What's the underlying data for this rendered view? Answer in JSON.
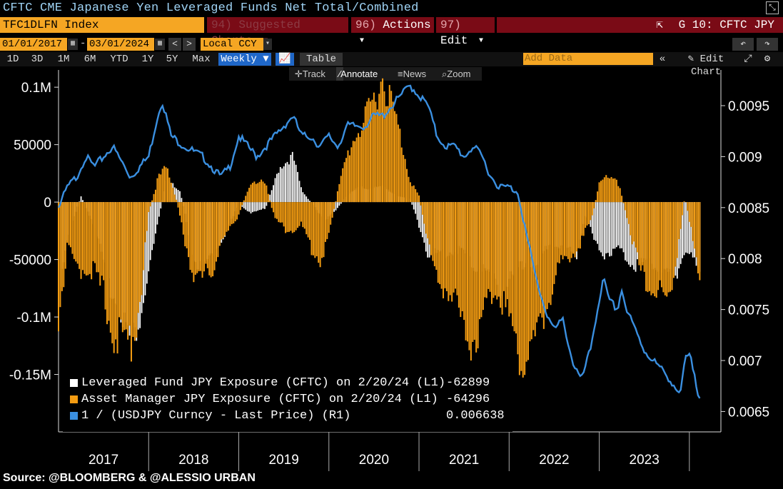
{
  "window": {
    "title": "CFTC CME Japanese Yen Leveraged Funds Net Total/Combined"
  },
  "toolbar_row": {
    "ticker": "TFC1DLFN Index",
    "suggested": {
      "num": "94)",
      "label": "Suggested Charts"
    },
    "actions": {
      "num": "96)",
      "label": "Actions"
    },
    "edit": {
      "num": "97)",
      "label": "Edit"
    },
    "launch": "G 10: CFTC JPY"
  },
  "range_row": {
    "start_date": "01/01/2017",
    "dash": "-",
    "end_date": "03/01/2024",
    "currency": "Local CCY",
    "prev": "<",
    "next": ">"
  },
  "period_row": {
    "periods": [
      "1D",
      "3D",
      "1M",
      "6M",
      "YTD",
      "1Y",
      "5Y",
      "Max"
    ],
    "frequency": "Weekly",
    "table_label": "Table",
    "add_data_placeholder": "Add Data",
    "edit_chart": "Edit Chart"
  },
  "chart_tools": {
    "track": "Track",
    "annotate": "Annotate",
    "news": "News",
    "zoom": "Zoom"
  },
  "chart_data": {
    "type": "bar+line",
    "title": "CFTC CME Japanese Yen Leveraged Funds Net Total/Combined",
    "x_years": [
      "2017",
      "2018",
      "2019",
      "2020",
      "2021",
      "2022",
      "2023"
    ],
    "left_axis": {
      "ticks": [
        "0.1M",
        "50000",
        "0",
        "-50000",
        "-0.1M",
        "-0.15M"
      ],
      "tick_values": [
        100000,
        50000,
        0,
        -50000,
        -100000,
        -150000
      ],
      "range": [
        -200000,
        115000
      ]
    },
    "right_axis": {
      "ticks": [
        "0.0095",
        "0.009",
        "0.0085",
        "0.008",
        "0.0075",
        "0.007",
        "0.0065"
      ],
      "tick_values": [
        0.0095,
        0.009,
        0.0085,
        0.008,
        0.0075,
        0.007,
        0.0065
      ],
      "range": [
        0.0063,
        0.00985
      ]
    },
    "series": [
      {
        "name": "Leveraged Fund JPY Exposure (CFTC) on 2/20/24 (L1)",
        "last": "-62899",
        "color": "#ffffff",
        "anchors": [
          [
            2017.0,
            -75000
          ],
          [
            2017.1,
            -30000
          ],
          [
            2017.25,
            5000
          ],
          [
            2017.4,
            -20000
          ],
          [
            2017.55,
            -70000
          ],
          [
            2017.7,
            -95000
          ],
          [
            2017.8,
            -120000
          ],
          [
            2017.9,
            -105000
          ],
          [
            2018.05,
            -40000
          ],
          [
            2018.2,
            20000
          ],
          [
            2018.35,
            10000
          ],
          [
            2018.5,
            -50000
          ],
          [
            2018.6,
            -60000
          ],
          [
            2018.75,
            -40000
          ],
          [
            2018.9,
            -20000
          ],
          [
            2019.0,
            -2000
          ],
          [
            2019.15,
            -10000
          ],
          [
            2019.3,
            -5000
          ],
          [
            2019.45,
            30000
          ],
          [
            2019.6,
            40000
          ],
          [
            2019.7,
            10000
          ],
          [
            2019.85,
            -5000
          ],
          [
            2019.95,
            -15000
          ],
          [
            2020.05,
            -10000
          ],
          [
            2020.2,
            5000
          ],
          [
            2020.35,
            15000
          ],
          [
            2020.45,
            10000
          ],
          [
            2020.6,
            15000
          ],
          [
            2020.75,
            5000
          ],
          [
            2020.9,
            3000
          ],
          [
            2021.0,
            -20000
          ],
          [
            2021.1,
            -45000
          ],
          [
            2021.3,
            -45000
          ],
          [
            2021.45,
            -40000
          ],
          [
            2021.6,
            -55000
          ],
          [
            2021.75,
            -60000
          ],
          [
            2021.9,
            -75000
          ],
          [
            2022.0,
            -70000
          ],
          [
            2022.1,
            -60000
          ],
          [
            2022.2,
            -50000
          ],
          [
            2022.3,
            -60000
          ],
          [
            2022.45,
            -35000
          ],
          [
            2022.6,
            -40000
          ],
          [
            2022.75,
            -45000
          ],
          [
            2022.85,
            -10000
          ],
          [
            2022.95,
            -35000
          ],
          [
            2023.05,
            -45000
          ],
          [
            2023.2,
            -40000
          ],
          [
            2023.4,
            -55000
          ],
          [
            2023.55,
            -50000
          ],
          [
            2023.7,
            -60000
          ],
          [
            2023.85,
            -65000
          ],
          [
            2023.95,
            -40000
          ],
          [
            2024.13,
            -62899
          ]
        ]
      },
      {
        "name": "Asset Manager JPY Exposure (CFTC) on 2/20/24 (L1)",
        "last": "-64296",
        "color": "#f39c12",
        "anchors": [
          [
            2017.0,
            -100000
          ],
          [
            2017.1,
            -40000
          ],
          [
            2017.2,
            -60000
          ],
          [
            2017.35,
            -55000
          ],
          [
            2017.5,
            -80000
          ],
          [
            2017.6,
            -110000
          ],
          [
            2017.7,
            -125000
          ],
          [
            2017.8,
            -120000
          ],
          [
            2017.9,
            -90000
          ],
          [
            2018.0,
            -10000
          ],
          [
            2018.1,
            20000
          ],
          [
            2018.2,
            30000
          ],
          [
            2018.3,
            5000
          ],
          [
            2018.45,
            -50000
          ],
          [
            2018.55,
            -70000
          ],
          [
            2018.7,
            -60000
          ],
          [
            2018.8,
            -35000
          ],
          [
            2018.9,
            -25000
          ],
          [
            2019.0,
            -10000
          ],
          [
            2019.15,
            20000
          ],
          [
            2019.3,
            15000
          ],
          [
            2019.4,
            -15000
          ],
          [
            2019.55,
            -25000
          ],
          [
            2019.7,
            -20000
          ],
          [
            2019.8,
            -40000
          ],
          [
            2019.9,
            -50000
          ],
          [
            2020.0,
            -30000
          ],
          [
            2020.1,
            10000
          ],
          [
            2020.2,
            40000
          ],
          [
            2020.3,
            60000
          ],
          [
            2020.4,
            70000
          ],
          [
            2020.5,
            90000
          ],
          [
            2020.6,
            110000
          ],
          [
            2020.7,
            85000
          ],
          [
            2020.8,
            55000
          ],
          [
            2020.9,
            20000
          ],
          [
            2021.0,
            5000
          ],
          [
            2021.1,
            -35000
          ],
          [
            2021.2,
            -70000
          ],
          [
            2021.35,
            -75000
          ],
          [
            2021.5,
            -110000
          ],
          [
            2021.6,
            -120000
          ],
          [
            2021.75,
            -90000
          ],
          [
            2021.85,
            -70000
          ],
          [
            2022.0,
            -100000
          ],
          [
            2022.15,
            -140000
          ],
          [
            2022.3,
            -120000
          ],
          [
            2022.45,
            -80000
          ],
          [
            2022.6,
            -50000
          ],
          [
            2022.75,
            -40000
          ],
          [
            2022.9,
            -20000
          ],
          [
            2023.0,
            15000
          ],
          [
            2023.1,
            25000
          ],
          [
            2023.2,
            20000
          ],
          [
            2023.3,
            -10000
          ],
          [
            2023.45,
            -60000
          ],
          [
            2023.6,
            -75000
          ],
          [
            2023.7,
            -85000
          ],
          [
            2023.8,
            -80000
          ],
          [
            2023.95,
            5000
          ],
          [
            2024.05,
            -40000
          ],
          [
            2024.13,
            -64296
          ]
        ]
      },
      {
        "name": "1 / (USDJPY Curncy - Last Price) (R1)",
        "last": "0.006638",
        "color": "#3a8fe0",
        "anchors": [
          [
            2017.0,
            0.0085
          ],
          [
            2017.1,
            0.0087
          ],
          [
            2017.2,
            0.0088
          ],
          [
            2017.3,
            0.009
          ],
          [
            2017.4,
            0.0089
          ],
          [
            2017.5,
            0.009
          ],
          [
            2017.6,
            0.0091
          ],
          [
            2017.7,
            0.00895
          ],
          [
            2017.8,
            0.0088
          ],
          [
            2017.9,
            0.0089
          ],
          [
            2018.0,
            0.009
          ],
          [
            2018.1,
            0.0094
          ],
          [
            2018.15,
            0.00955
          ],
          [
            2018.25,
            0.0092
          ],
          [
            2018.4,
            0.0091
          ],
          [
            2018.5,
            0.00905
          ],
          [
            2018.6,
            0.009
          ],
          [
            2018.7,
            0.0089
          ],
          [
            2018.8,
            0.0088
          ],
          [
            2018.9,
            0.0089
          ],
          [
            2019.0,
            0.0092
          ],
          [
            2019.1,
            0.0091
          ],
          [
            2019.2,
            0.009
          ],
          [
            2019.3,
            0.0091
          ],
          [
            2019.4,
            0.0092
          ],
          [
            2019.5,
            0.0093
          ],
          [
            2019.6,
            0.0094
          ],
          [
            2019.7,
            0.0092
          ],
          [
            2019.8,
            0.0092
          ],
          [
            2019.9,
            0.0091
          ],
          [
            2020.0,
            0.0092
          ],
          [
            2020.1,
            0.0091
          ],
          [
            2020.2,
            0.0093
          ],
          [
            2020.3,
            0.0093
          ],
          [
            2020.4,
            0.0093
          ],
          [
            2020.5,
            0.0094
          ],
          [
            2020.6,
            0.0094
          ],
          [
            2020.7,
            0.0095
          ],
          [
            2020.8,
            0.0096
          ],
          [
            2020.9,
            0.0097
          ],
          [
            2021.0,
            0.0096
          ],
          [
            2021.1,
            0.0095
          ],
          [
            2021.2,
            0.0092
          ],
          [
            2021.3,
            0.0091
          ],
          [
            2021.4,
            0.0091
          ],
          [
            2021.5,
            0.009
          ],
          [
            2021.6,
            0.0091
          ],
          [
            2021.7,
            0.009
          ],
          [
            2021.8,
            0.0088
          ],
          [
            2021.9,
            0.0087
          ],
          [
            2022.0,
            0.0087
          ],
          [
            2022.1,
            0.00865
          ],
          [
            2022.2,
            0.0082
          ],
          [
            2022.3,
            0.0078
          ],
          [
            2022.4,
            0.0075
          ],
          [
            2022.5,
            0.0073
          ],
          [
            2022.6,
            0.0074
          ],
          [
            2022.7,
            0.007
          ],
          [
            2022.8,
            0.0068
          ],
          [
            2022.9,
            0.0071
          ],
          [
            2023.0,
            0.0076
          ],
          [
            2023.05,
            0.0078
          ],
          [
            2023.1,
            0.0076
          ],
          [
            2023.2,
            0.0075
          ],
          [
            2023.25,
            0.0077
          ],
          [
            2023.3,
            0.0075
          ],
          [
            2023.4,
            0.0073
          ],
          [
            2023.5,
            0.0071
          ],
          [
            2023.6,
            0.007
          ],
          [
            2023.7,
            0.0069
          ],
          [
            2023.8,
            0.0068
          ],
          [
            2023.9,
            0.00665
          ],
          [
            2023.95,
            0.007
          ],
          [
            2024.0,
            0.00705
          ],
          [
            2024.05,
            0.0069
          ],
          [
            2024.1,
            0.00668
          ],
          [
            2024.13,
            0.006638
          ]
        ]
      }
    ]
  },
  "source": "Source: @BLOOMBERG & @ALESSIO URBAN"
}
